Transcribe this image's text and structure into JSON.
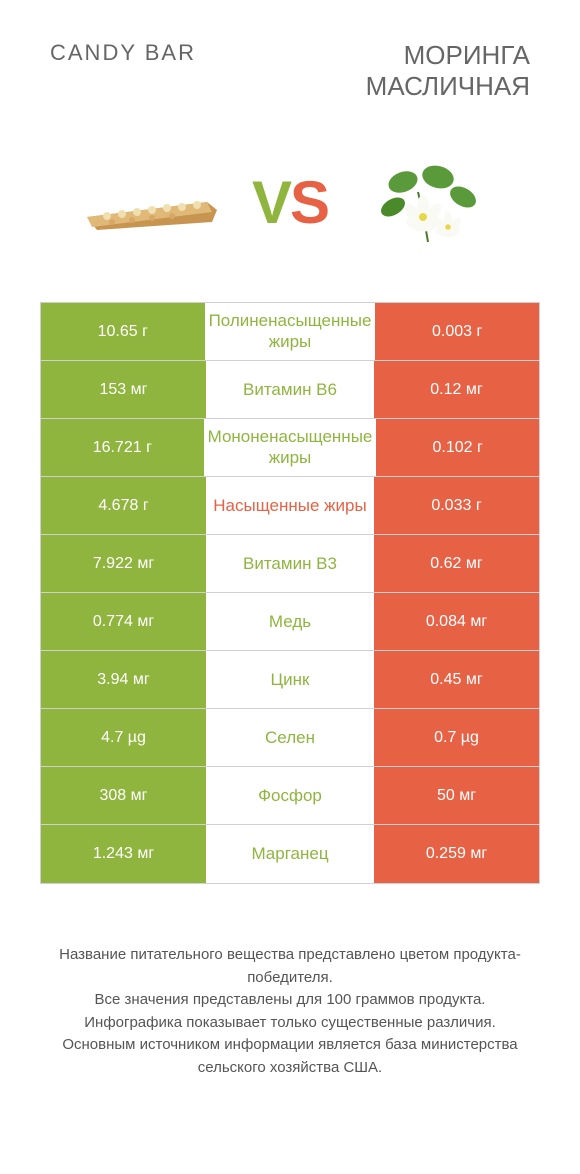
{
  "header": {
    "left": "CANDY BAR",
    "right_line1": "МОРИНГА",
    "right_line2": "МАСЛИЧНАЯ"
  },
  "vs": {
    "v": "V",
    "s": "S"
  },
  "colors": {
    "left_bg": "#8fb53f",
    "right_bg": "#e76245",
    "mid_left": "#8fb53f",
    "mid_right": "#e76245",
    "border": "#d0d0d0",
    "text_gray": "#666666"
  },
  "rows": [
    {
      "left": "10.65 г",
      "mid": "Полиненасыщенные жиры",
      "mid_color": "left",
      "right": "0.003 г"
    },
    {
      "left": "153 мг",
      "mid": "Витамин B6",
      "mid_color": "left",
      "right": "0.12 мг"
    },
    {
      "left": "16.721 г",
      "mid": "Мононенасыщенные жиры",
      "mid_color": "left",
      "right": "0.102 г"
    },
    {
      "left": "4.678 г",
      "mid": "Насыщенные жиры",
      "mid_color": "right",
      "right": "0.033 г"
    },
    {
      "left": "7.922 мг",
      "mid": "Витамин B3",
      "mid_color": "left",
      "right": "0.62 мг"
    },
    {
      "left": "0.774 мг",
      "mid": "Медь",
      "mid_color": "left",
      "right": "0.084 мг"
    },
    {
      "left": "3.94 мг",
      "mid": "Цинк",
      "mid_color": "left",
      "right": "0.45 мг"
    },
    {
      "left": "4.7 µg",
      "mid": "Селен",
      "mid_color": "left",
      "right": "0.7 µg"
    },
    {
      "left": "308 мг",
      "mid": "Фосфор",
      "mid_color": "left",
      "right": "50 мг"
    },
    {
      "left": "1.243 мг",
      "mid": "Марганец",
      "mid_color": "left",
      "right": "0.259 мг"
    }
  ],
  "footer": {
    "l1": "Название питательного вещества представлено цветом продукта-победителя.",
    "l2": "Все значения представлены для 100 граммов продукта.",
    "l3": "Инфографика показывает только существенные различия.",
    "l4": "Основным источником информации является база министерства сельского хозяйства США."
  }
}
